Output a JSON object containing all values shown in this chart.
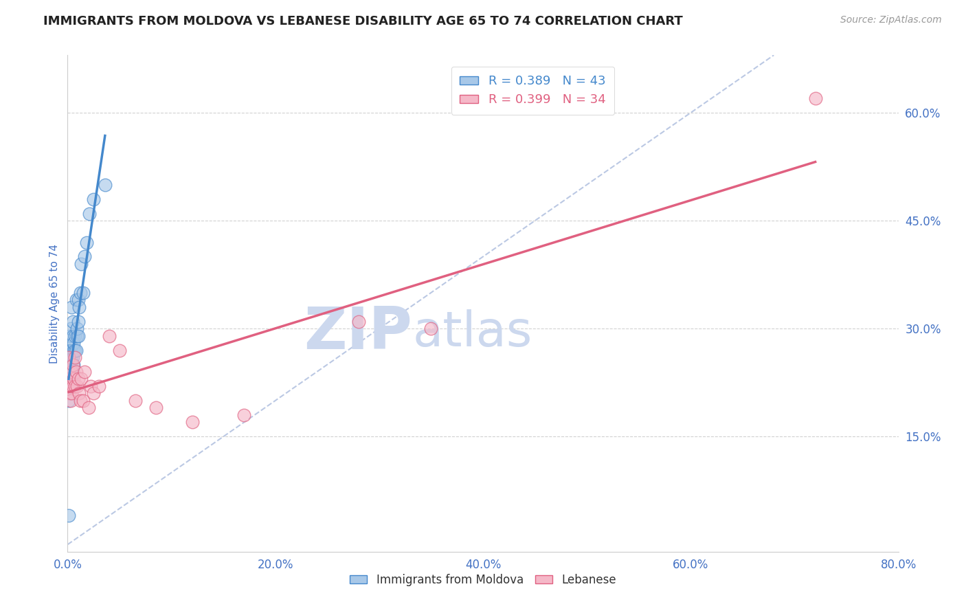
{
  "title": "IMMIGRANTS FROM MOLDOVA VS LEBANESE DISABILITY AGE 65 TO 74 CORRELATION CHART",
  "source": "Source: ZipAtlas.com",
  "ylabel_label": "Disability Age 65 to 74",
  "legend_label1": "Immigrants from Moldova",
  "legend_label2": "Lebanese",
  "R1": 0.389,
  "N1": 43,
  "R2": 0.399,
  "N2": 34,
  "blue_color": "#a8c8e8",
  "pink_color": "#f5b8c8",
  "blue_line_color": "#4488cc",
  "pink_line_color": "#e06080",
  "xlim": [
    0.0,
    0.8
  ],
  "ylim": [
    -0.01,
    0.68
  ],
  "yticks_right": [
    0.15,
    0.3,
    0.45,
    0.6
  ],
  "ytick_right_labels": [
    "15.0%",
    "30.0%",
    "45.0%",
    "60.0%"
  ],
  "xticks": [
    0.0,
    0.2,
    0.4,
    0.6,
    0.8
  ],
  "xtick_labels": [
    "0.0%",
    "20.0%",
    "40.0%",
    "60.0%",
    "80.0%"
  ],
  "moldova_x": [
    0.001,
    0.001,
    0.001,
    0.001,
    0.002,
    0.002,
    0.002,
    0.002,
    0.002,
    0.003,
    0.003,
    0.003,
    0.003,
    0.003,
    0.004,
    0.004,
    0.004,
    0.004,
    0.005,
    0.005,
    0.005,
    0.005,
    0.006,
    0.006,
    0.006,
    0.007,
    0.007,
    0.008,
    0.008,
    0.009,
    0.009,
    0.01,
    0.01,
    0.01,
    0.011,
    0.012,
    0.013,
    0.015,
    0.016,
    0.018,
    0.021,
    0.025,
    0.036
  ],
  "moldova_y": [
    0.04,
    0.2,
    0.23,
    0.27,
    0.22,
    0.23,
    0.25,
    0.27,
    0.29,
    0.22,
    0.24,
    0.25,
    0.27,
    0.3,
    0.23,
    0.26,
    0.27,
    0.33,
    0.24,
    0.26,
    0.29,
    0.31,
    0.25,
    0.27,
    0.28,
    0.27,
    0.29,
    0.27,
    0.34,
    0.29,
    0.3,
    0.29,
    0.31,
    0.34,
    0.33,
    0.35,
    0.39,
    0.35,
    0.4,
    0.42,
    0.46,
    0.48,
    0.5
  ],
  "lebanon_x": [
    0.001,
    0.001,
    0.002,
    0.002,
    0.003,
    0.003,
    0.004,
    0.004,
    0.005,
    0.005,
    0.006,
    0.007,
    0.007,
    0.008,
    0.009,
    0.01,
    0.011,
    0.012,
    0.013,
    0.015,
    0.016,
    0.02,
    0.022,
    0.025,
    0.03,
    0.04,
    0.05,
    0.065,
    0.085,
    0.12,
    0.17,
    0.28,
    0.35,
    0.72
  ],
  "lebanon_y": [
    0.24,
    0.26,
    0.21,
    0.23,
    0.2,
    0.22,
    0.21,
    0.24,
    0.22,
    0.25,
    0.23,
    0.22,
    0.26,
    0.24,
    0.22,
    0.23,
    0.21,
    0.2,
    0.23,
    0.2,
    0.24,
    0.19,
    0.22,
    0.21,
    0.22,
    0.29,
    0.27,
    0.2,
    0.19,
    0.17,
    0.18,
    0.31,
    0.3,
    0.62
  ],
  "background_color": "#ffffff",
  "grid_color": "#cccccc",
  "title_fontsize": 13,
  "axis_label_color": "#4472c4",
  "tick_color": "#4472c4",
  "watermark_zip": "ZIP",
  "watermark_atlas": "atlas",
  "watermark_color": "#ccd8ee"
}
